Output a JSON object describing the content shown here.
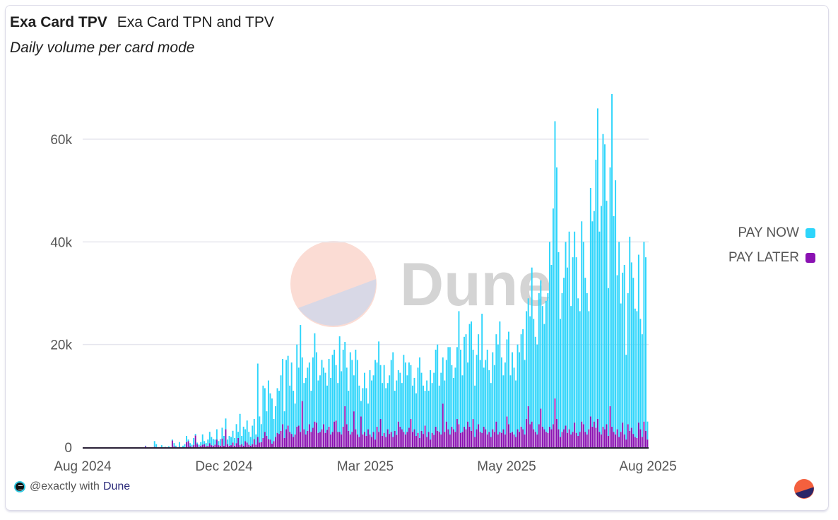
{
  "header": {
    "title": "Exa Card TPV",
    "query_name": "Exa Card TPN and TPV",
    "subtitle": "Daily volume per card mode"
  },
  "footer": {
    "user": "@exactly with",
    "brand": "Dune"
  },
  "watermark": {
    "text": "Dune"
  },
  "colors": {
    "pay_now": "#2dd5fb",
    "pay_later": "#8a12b2",
    "axis_text": "#555555",
    "grid": "#e6e6ee"
  },
  "chart_data": {
    "type": "bar",
    "stacked": true,
    "title": "Exa Card TPV",
    "xlabel": "",
    "ylabel": "",
    "ylim": [
      0,
      70000
    ],
    "yticks": [
      0,
      20000,
      40000,
      60000
    ],
    "ytick_labels": [
      "0",
      "20k",
      "40k",
      "60k"
    ],
    "xtick_labels": [
      "Aug 2024",
      "Dec 2024",
      "Mar 2025",
      "May 2025",
      "Aug 2025"
    ],
    "x_range": [
      "2024-08-01",
      "2025-08-01"
    ],
    "grid": true,
    "legend": "right",
    "series": [
      {
        "name": "PAY NOW",
        "color": "#2dd5fb"
      },
      {
        "name": "PAY LATER",
        "color": "#8a12b2"
      }
    ],
    "totals": [
      0,
      0,
      0,
      0,
      0,
      0,
      0,
      0,
      0,
      0,
      0,
      0,
      0,
      0,
      0,
      0,
      0,
      0,
      0,
      0,
      0,
      0,
      0,
      0,
      0,
      0,
      0,
      0,
      0,
      0,
      0,
      0,
      0,
      0,
      0,
      300,
      0,
      0,
      0,
      0,
      1200,
      600,
      0,
      0,
      400,
      0,
      100,
      0,
      200,
      0,
      1500,
      800,
      300,
      0,
      1000,
      0,
      300,
      600,
      2200,
      1500,
      800,
      500,
      1800,
      2600,
      900,
      500,
      1000,
      2500,
      1200,
      800,
      1500,
      3000,
      2000,
      1600,
      1500,
      3500,
      1200,
      1600,
      3800,
      2200,
      5600,
      1500,
      2200,
      2000,
      3200,
      1800,
      4500,
      3000,
      6500,
      2200,
      4000,
      3500,
      5200,
      3000,
      2000,
      4200,
      5500,
      2500,
      16300,
      6000,
      4500,
      12000,
      11500,
      7000,
      13000,
      10500,
      9500,
      5500,
      8000,
      11500,
      11000,
      14000,
      17200,
      7000,
      17000,
      17800,
      12000,
      16500,
      11000,
      8500,
      20000,
      15500,
      23800,
      17500,
      12500,
      13500,
      15500,
      16500,
      11000,
      17500,
      22200,
      18500,
      13000,
      14000,
      17000,
      15500,
      14500,
      12000,
      17200,
      13500,
      18000,
      19000,
      16000,
      12500,
      21600,
      14800,
      19000,
      20500,
      15500,
      11000,
      18500,
      17000,
      14000,
      19000,
      17000,
      12000,
      9000,
      11500,
      14500,
      11500,
      8500,
      15000,
      13000,
      14000,
      17000,
      16500,
      20600,
      16000,
      12500,
      16000,
      11500,
      12500,
      14000,
      17000,
      18500,
      11000,
      13000,
      15000,
      14500,
      12500,
      18000,
      16500,
      14000,
      16500,
      16000,
      12000,
      13500,
      10500,
      15500,
      17500,
      14500,
      12000,
      11000,
      13000,
      11000,
      15000,
      12500,
      14500,
      19000,
      20000,
      12000,
      14500,
      17500,
      13000,
      17000,
      19500,
      19500,
      16000,
      13500,
      15500,
      19500,
      26500,
      19000,
      14000,
      21500,
      22000,
      16500,
      24000,
      24500,
      19000,
      12000,
      18000,
      22000,
      17000,
      26000,
      15500,
      17000,
      19000,
      15000,
      12500,
      18500,
      16000,
      22000,
      20000,
      24500,
      17500,
      14000,
      16500,
      21000,
      22500,
      14000,
      18500,
      15500,
      13000,
      20000,
      18500,
      22000,
      23000,
      17000,
      26500,
      29000,
      25500,
      35000,
      25000,
      21500,
      20000,
      30000,
      32500,
      27500,
      24000,
      28500,
      30000,
      40000,
      35500,
      46500,
      63500,
      54500,
      38000,
      25000,
      30000,
      33000,
      40000,
      35000,
      42000,
      27500,
      37000,
      42000,
      37000,
      29000,
      26500,
      44000,
      40000,
      33000,
      30000,
      26500,
      50500,
      44000,
      46000,
      56000,
      66000,
      42000,
      47000,
      61000,
      59000,
      48000,
      31000,
      54500,
      68800,
      45000,
      52000,
      33500,
      40000,
      28000,
      34000,
      35500,
      18000,
      30000,
      41000,
      36000,
      33000,
      27000,
      26500,
      37500,
      25000,
      22000,
      40000,
      37000,
      5000
    ],
    "pay_later": [
      0,
      0,
      0,
      0,
      0,
      0,
      0,
      0,
      0,
      0,
      0,
      0,
      0,
      0,
      0,
      0,
      0,
      0,
      0,
      0,
      0,
      0,
      0,
      0,
      0,
      0,
      0,
      0,
      0,
      0,
      0,
      0,
      0,
      0,
      0,
      200,
      0,
      0,
      0,
      0,
      100,
      0,
      0,
      0,
      0,
      0,
      0,
      0,
      0,
      0,
      1300,
      200,
      0,
      0,
      100,
      0,
      0,
      0,
      1000,
      1200,
      200,
      100,
      400,
      2300,
      600,
      100,
      300,
      500,
      600,
      200,
      300,
      800,
      400,
      300,
      500,
      1500,
      400,
      300,
      1700,
      300,
      3500,
      600,
      300,
      400,
      900,
      300,
      800,
      1800,
      400,
      600,
      300,
      1200,
      900,
      500,
      300,
      600,
      1600,
      500,
      2000,
      900,
      1000,
      1800,
      3000,
      2200,
      1600,
      1500,
      700,
      1200,
      2000,
      2800,
      2600,
      3200,
      4500,
      1800,
      3500,
      4200,
      3000,
      2600,
      2000,
      2500,
      4000,
      4200,
      3000,
      9000,
      3500,
      2500,
      3200,
      4500,
      3000,
      3800,
      5000,
      4800,
      2800,
      3000,
      3500,
      4500,
      2800,
      3400,
      4000,
      2500,
      3000,
      5000,
      5200,
      3000,
      3000,
      2500,
      4000,
      8000,
      4500,
      3200,
      2500,
      3000,
      7000,
      3500,
      2500,
      2000,
      6000,
      2500,
      3000,
      2200,
      3500,
      2500,
      2000,
      3000,
      1500,
      4000,
      3000,
      5500,
      2200,
      2800,
      2000,
      3500,
      2600,
      3000,
      2000,
      3200,
      2400,
      5000,
      4000,
      3500,
      3000,
      2500,
      3000,
      3800,
      5500,
      3000,
      3500,
      2200,
      2800,
      1800,
      3200,
      2600,
      4200,
      2000,
      3000,
      1500,
      2800,
      2400,
      4000,
      3200,
      3000,
      2500,
      8500,
      3000,
      5000,
      3500,
      2500,
      4000,
      3500,
      3000,
      5500,
      4500,
      2800,
      3000,
      4000,
      3500,
      5000,
      4000,
      3200,
      5500,
      2000,
      3500,
      4500,
      3000,
      2800,
      4000,
      3500,
      2500,
      3000,
      2000,
      3500,
      3000,
      5000,
      2500,
      3000,
      2800,
      3500,
      2500,
      6000,
      4500,
      2800,
      3000,
      2500,
      2000,
      3500,
      3000,
      4000,
      3500,
      2500,
      5500,
      8000,
      4500,
      5000,
      3500,
      3000,
      2500,
      4500,
      7500,
      4000,
      3500,
      3000,
      2800,
      4000,
      3500,
      4500,
      9500,
      5500,
      3500,
      2000,
      3000,
      3500,
      4200,
      2800,
      3500,
      2500,
      3000,
      4800,
      2800,
      2200,
      3000,
      5000,
      4500,
      3000,
      2500,
      3500,
      6000,
      4000,
      5000,
      3800,
      5500,
      3000,
      2500,
      4000,
      3500,
      4500,
      2200,
      8000,
      4000,
      3000,
      2500,
      3500,
      2000,
      3000,
      4800,
      2500,
      1500,
      4500,
      3200,
      3800,
      2600,
      2000,
      1800,
      4800,
      3500,
      2000,
      5000,
      3200,
      1500
    ]
  }
}
